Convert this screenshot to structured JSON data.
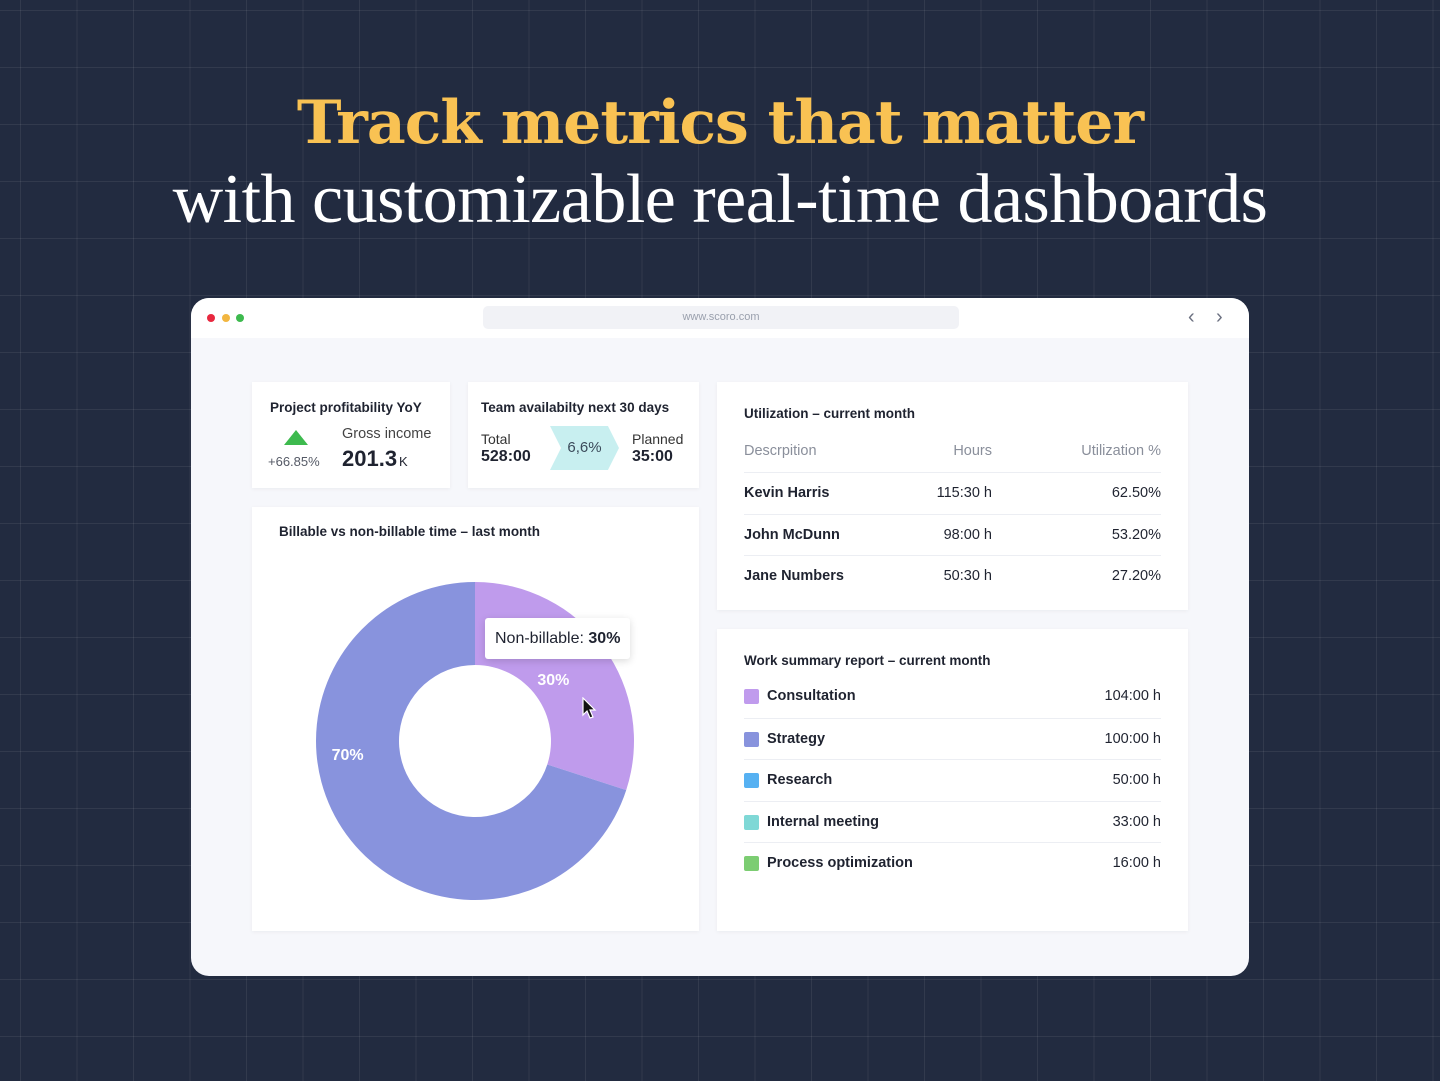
{
  "headline": {
    "line1": "Track metrics that matter",
    "line2": "with customizable real-time dashboards"
  },
  "browser": {
    "url": "www.scoro.com",
    "back": "‹",
    "forward": "›",
    "dots": [
      "#e8283f",
      "#f2b640",
      "#3dba4e"
    ]
  },
  "profitability": {
    "title": "Project profitability YoY",
    "change": "+66.85%",
    "label": "Gross income",
    "value": "201.3",
    "unit": "K",
    "trend_icon": "triangle-up",
    "trend_color": "#3dba4e"
  },
  "availability": {
    "title": "Team availabilty next 30 days",
    "total_label": "Total",
    "total": "528:00",
    "percent": "6,6%",
    "planned_label": "Planned",
    "planned": "35:00"
  },
  "donut": {
    "title": "Billable vs non-billable time – last month",
    "tooltip_label": "Non-billable:",
    "tooltip_value": "30%"
  },
  "chart_data": {
    "type": "pie",
    "title": "Billable vs non-billable time – last month",
    "slices": [
      {
        "label": "Non-billable",
        "value": 30,
        "display": "30%",
        "color": "#bf9bec"
      },
      {
        "label": "Billable",
        "value": 70,
        "display": "70%",
        "color": "#8893dd"
      }
    ]
  },
  "utilization": {
    "title": "Utilization – current month",
    "columns": [
      "Descrpition",
      "Hours",
      "Utilization %"
    ],
    "rows": [
      [
        "Kevin Harris",
        "115:30 h",
        "62.50%"
      ],
      [
        "John McDunn",
        "98:00 h",
        "53.20%"
      ],
      [
        "Jane Numbers",
        "50:30 h",
        "27.20%"
      ]
    ]
  },
  "work": {
    "title": "Work summary report – current month",
    "rows": [
      {
        "name": "Consultation",
        "hours": "104:00 h",
        "color": "#c09bed"
      },
      {
        "name": "Strategy",
        "hours": "100:00 h",
        "color": "#8893dd"
      },
      {
        "name": "Research",
        "hours": "50:00 h",
        "color": "#56b1f2"
      },
      {
        "name": "Internal meeting",
        "hours": "33:00 h",
        "color": "#7fd8d6"
      },
      {
        "name": "Process optimization",
        "hours": "16:00 h",
        "color": "#7ccd72"
      }
    ]
  }
}
